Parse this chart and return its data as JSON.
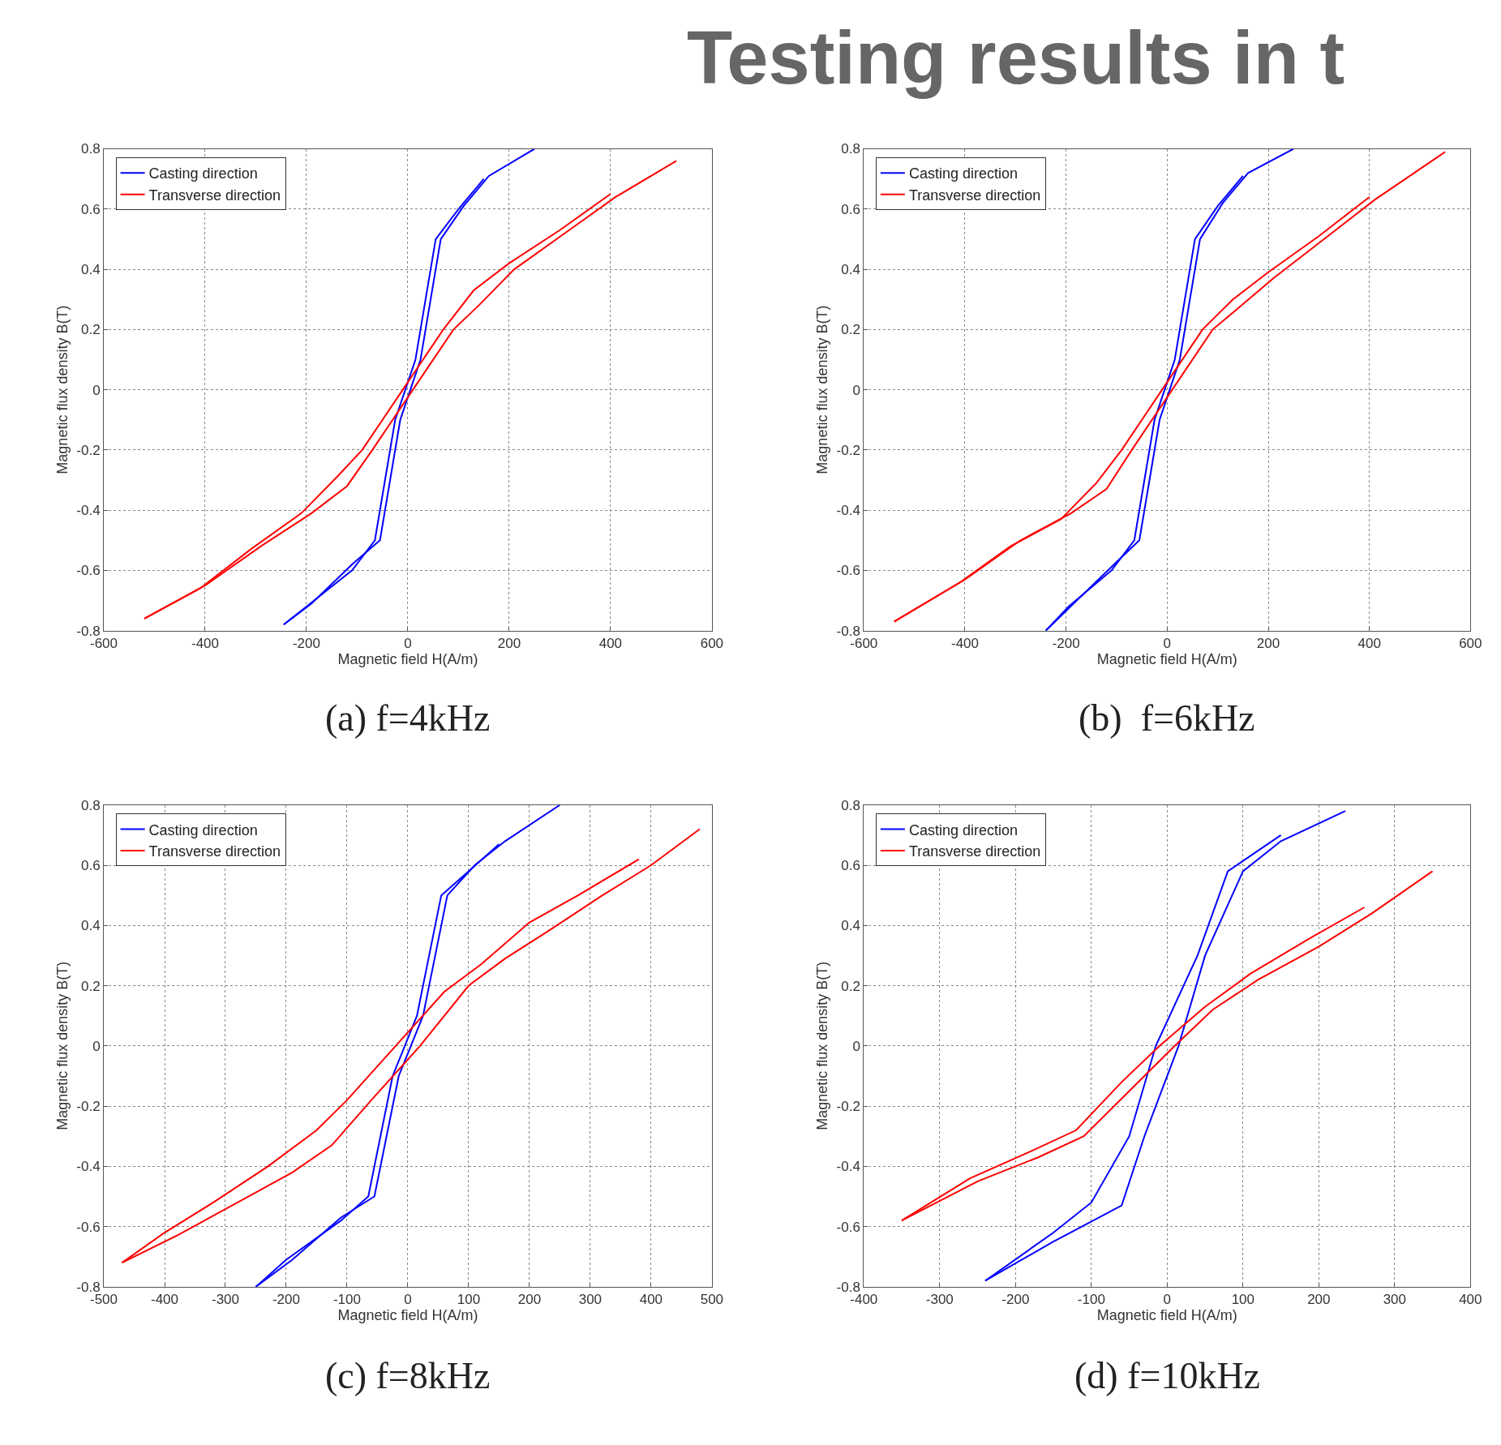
{
  "chart_data": [
    {
      "type": "line",
      "title": "(a) f=4kHz",
      "xlabel": "Magnetic field H(A/m)",
      "ylabel": "Magnetic flux density B(T)",
      "xlim": [
        -600,
        600
      ],
      "xticks": [
        -600,
        -400,
        -200,
        0,
        200,
        400,
        600
      ],
      "ylim": [
        -0.8,
        0.8
      ],
      "yticks": [
        -0.8,
        -0.6,
        -0.4,
        -0.2,
        0,
        0.2,
        0.4,
        0.6,
        0.8
      ],
      "grid": true,
      "legend": "top left",
      "series": [
        {
          "name": "Casting direction",
          "color": "#0000ff",
          "x": [
            -245,
            -190,
            -110,
            -55,
            -35,
            -15,
            5,
            25,
            45,
            65,
            110,
            160,
            250
          ],
          "values": [
            -0.78,
            -0.71,
            -0.58,
            -0.5,
            -0.3,
            -0.1,
            0,
            0.1,
            0.3,
            0.5,
            0.61,
            0.71,
            0.8
          ]
        },
        {
          "color": "#0000ff",
          "x": [
            150,
            100,
            55,
            35,
            15,
            -5,
            -25,
            -45,
            -65,
            -110,
            -200,
            -245
          ],
          "values": [
            0.7,
            0.6,
            0.5,
            0.3,
            0.1,
            0,
            -0.1,
            -0.3,
            -0.5,
            -0.6,
            -0.72,
            -0.78
          ]
        },
        {
          "name": "Transverse direction",
          "color": "#ff0000",
          "x": [
            -520,
            -400,
            -290,
            -190,
            -120,
            -70,
            10,
            90,
            140,
            210,
            310,
            410,
            530
          ],
          "values": [
            -0.76,
            -0.65,
            -0.52,
            -0.41,
            -0.32,
            -0.2,
            0,
            0.2,
            0.28,
            0.4,
            0.52,
            0.64,
            0.76
          ]
        },
        {
          "color": "#ff0000",
          "x": [
            400,
            300,
            200,
            130,
            70,
            -10,
            -90,
            -140,
            -210,
            -310,
            -410,
            -520
          ],
          "values": [
            0.65,
            0.53,
            0.42,
            0.33,
            0.2,
            0,
            -0.2,
            -0.29,
            -0.41,
            -0.53,
            -0.66,
            -0.76
          ]
        }
      ]
    },
    {
      "type": "line",
      "title": "(b)  f=6kHz",
      "xlabel": "Magnetic field H(A/m)",
      "ylabel": "Magnetic flux density B(T)",
      "xlim": [
        -600,
        600
      ],
      "xticks": [
        -600,
        -400,
        -200,
        0,
        200,
        400,
        600
      ],
      "ylim": [
        -0.8,
        0.8
      ],
      "yticks": [
        -0.8,
        -0.6,
        -0.4,
        -0.2,
        0,
        0.2,
        0.4,
        0.6,
        0.8
      ],
      "grid": true,
      "legend": "top left",
      "series": [
        {
          "name": "Casting direction",
          "color": "#0000ff",
          "x": [
            -240,
            -185,
            -105,
            -55,
            -35,
            -15,
            5,
            25,
            45,
            65,
            110,
            160,
            250
          ],
          "values": [
            -0.8,
            -0.71,
            -0.58,
            -0.5,
            -0.3,
            -0.1,
            0,
            0.1,
            0.3,
            0.5,
            0.62,
            0.72,
            0.8
          ]
        },
        {
          "color": "#0000ff",
          "x": [
            150,
            100,
            55,
            35,
            15,
            -5,
            -25,
            -45,
            -65,
            -110,
            -195,
            -240
          ],
          "values": [
            0.71,
            0.61,
            0.5,
            0.3,
            0.1,
            0,
            -0.1,
            -0.3,
            -0.5,
            -0.6,
            -0.72,
            -0.8
          ]
        },
        {
          "name": "Transverse direction",
          "color": "#ff0000",
          "x": [
            -540,
            -400,
            -290,
            -190,
            -120,
            -70,
            10,
            90,
            140,
            210,
            310,
            410,
            550
          ],
          "values": [
            -0.77,
            -0.63,
            -0.5,
            -0.41,
            -0.33,
            -0.2,
            0,
            0.2,
            0.27,
            0.37,
            0.5,
            0.63,
            0.79
          ]
        },
        {
          "color": "#ff0000",
          "x": [
            400,
            300,
            200,
            130,
            70,
            -10,
            -90,
            -140,
            -210,
            -310,
            -410,
            -540
          ],
          "values": [
            0.64,
            0.51,
            0.39,
            0.3,
            0.2,
            0,
            -0.2,
            -0.31,
            -0.43,
            -0.52,
            -0.64,
            -0.77
          ]
        }
      ]
    },
    {
      "type": "line",
      "title": "(c) f=8kHz",
      "xlabel": "Magnetic field H(A/m)",
      "ylabel": "Magnetic flux density B(T)",
      "xlim": [
        -500,
        500
      ],
      "xticks": [
        -500,
        -400,
        -300,
        -200,
        -100,
        0,
        100,
        200,
        300,
        400,
        500
      ],
      "ylim": [
        -0.8,
        0.8
      ],
      "yticks": [
        -0.8,
        -0.6,
        -0.4,
        -0.2,
        0,
        0.2,
        0.4,
        0.6,
        0.8
      ],
      "grid": true,
      "legend": "top left",
      "series": [
        {
          "name": "Casting direction",
          "color": "#0000ff",
          "x": [
            -250,
            -190,
            -110,
            -55,
            -35,
            -15,
            5,
            25,
            45,
            65,
            110,
            160,
            250
          ],
          "values": [
            -0.8,
            -0.71,
            -0.57,
            -0.5,
            -0.3,
            -0.1,
            0,
            0.1,
            0.3,
            0.5,
            0.6,
            0.68,
            0.8
          ]
        },
        {
          "color": "#0000ff",
          "x": [
            150,
            100,
            55,
            35,
            15,
            -5,
            -25,
            -45,
            -65,
            -110,
            -200,
            -250
          ],
          "values": [
            0.67,
            0.58,
            0.5,
            0.3,
            0.1,
            0,
            -0.1,
            -0.3,
            -0.5,
            -0.58,
            -0.71,
            -0.8
          ]
        },
        {
          "name": "Transverse direction",
          "color": "#ff0000",
          "x": [
            -470,
            -380,
            -280,
            -190,
            -125,
            -60,
            20,
            100,
            160,
            230,
            320,
            400,
            480
          ],
          "values": [
            -0.72,
            -0.63,
            -0.52,
            -0.42,
            -0.33,
            -0.18,
            0,
            0.2,
            0.29,
            0.38,
            0.5,
            0.6,
            0.72
          ]
        },
        {
          "color": "#ff0000",
          "x": [
            380,
            280,
            200,
            120,
            60,
            -20,
            -100,
            -150,
            -230,
            -320,
            -400,
            -470
          ],
          "values": [
            0.62,
            0.5,
            0.41,
            0.27,
            0.18,
            0,
            -0.18,
            -0.28,
            -0.4,
            -0.52,
            -0.62,
            -0.72
          ]
        }
      ]
    },
    {
      "type": "line",
      "title": "(d) f=10kHz",
      "xlabel": "Magnetic field H(A/m)",
      "ylabel": "Magnetic flux density B(T)",
      "xlim": [
        -400,
        400
      ],
      "xticks": [
        -400,
        -300,
        -200,
        -100,
        0,
        100,
        200,
        300,
        400
      ],
      "ylim": [
        -0.8,
        0.8
      ],
      "yticks": [
        -0.8,
        -0.6,
        -0.4,
        -0.2,
        0,
        0.2,
        0.4,
        0.6,
        0.8
      ],
      "grid": true,
      "legend": "top left",
      "series": [
        {
          "name": "Casting direction",
          "color": "#0000ff",
          "x": [
            -240,
            -150,
            -60,
            -30,
            15,
            50,
            100,
            150,
            235
          ],
          "values": [
            -0.78,
            -0.65,
            -0.53,
            -0.3,
            0,
            0.3,
            0.58,
            0.68,
            0.78
          ]
        },
        {
          "color": "#0000ff",
          "x": [
            150,
            80,
            40,
            -15,
            -50,
            -100,
            -150,
            -240
          ],
          "values": [
            0.7,
            0.58,
            0.3,
            0,
            -0.3,
            -0.52,
            -0.62,
            -0.78
          ]
        },
        {
          "name": "Transverse direction",
          "color": "#ff0000",
          "x": [
            -350,
            -250,
            -170,
            -110,
            -50,
            10,
            60,
            120,
            200,
            270,
            350
          ],
          "values": [
            -0.58,
            -0.45,
            -0.37,
            -0.3,
            -0.15,
            0,
            0.12,
            0.22,
            0.33,
            0.44,
            0.58
          ]
        },
        {
          "color": "#ff0000",
          "x": [
            260,
            190,
            110,
            50,
            -10,
            -60,
            -120,
            -180,
            -260,
            -350
          ],
          "values": [
            0.46,
            0.36,
            0.24,
            0.13,
            0,
            -0.12,
            -0.28,
            -0.35,
            -0.44,
            -0.58
          ]
        }
      ]
    },
    {
      "type": "other",
      "title": "Testing results in t"
    }
  ]
}
